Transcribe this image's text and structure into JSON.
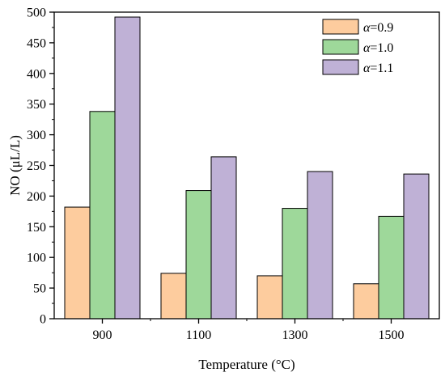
{
  "chart_data": {
    "type": "bar",
    "title": "",
    "xlabel": "Temperature (°C)",
    "ylabel": "NO (μL/L)",
    "categories": [
      "900",
      "1100",
      "1300",
      "1500"
    ],
    "ylim": [
      0,
      500
    ],
    "yticks": [
      0,
      50,
      100,
      150,
      200,
      250,
      300,
      350,
      400,
      450,
      500
    ],
    "grid": false,
    "legend_position": "top-right",
    "series": [
      {
        "name": "α=0.9",
        "symbol": "α",
        "label_rest": "=0.9",
        "color": "#fdcc9e",
        "values": [
          182,
          74,
          70,
          57
        ]
      },
      {
        "name": "α=1.0",
        "symbol": "α",
        "label_rest": "=1.0",
        "color": "#9ed89a",
        "values": [
          338,
          209,
          180,
          167
        ]
      },
      {
        "name": "α=1.1",
        "symbol": "α",
        "label_rest": "=1.1",
        "color": "#bfb1d6",
        "values": [
          492,
          264,
          240,
          236
        ]
      }
    ]
  }
}
